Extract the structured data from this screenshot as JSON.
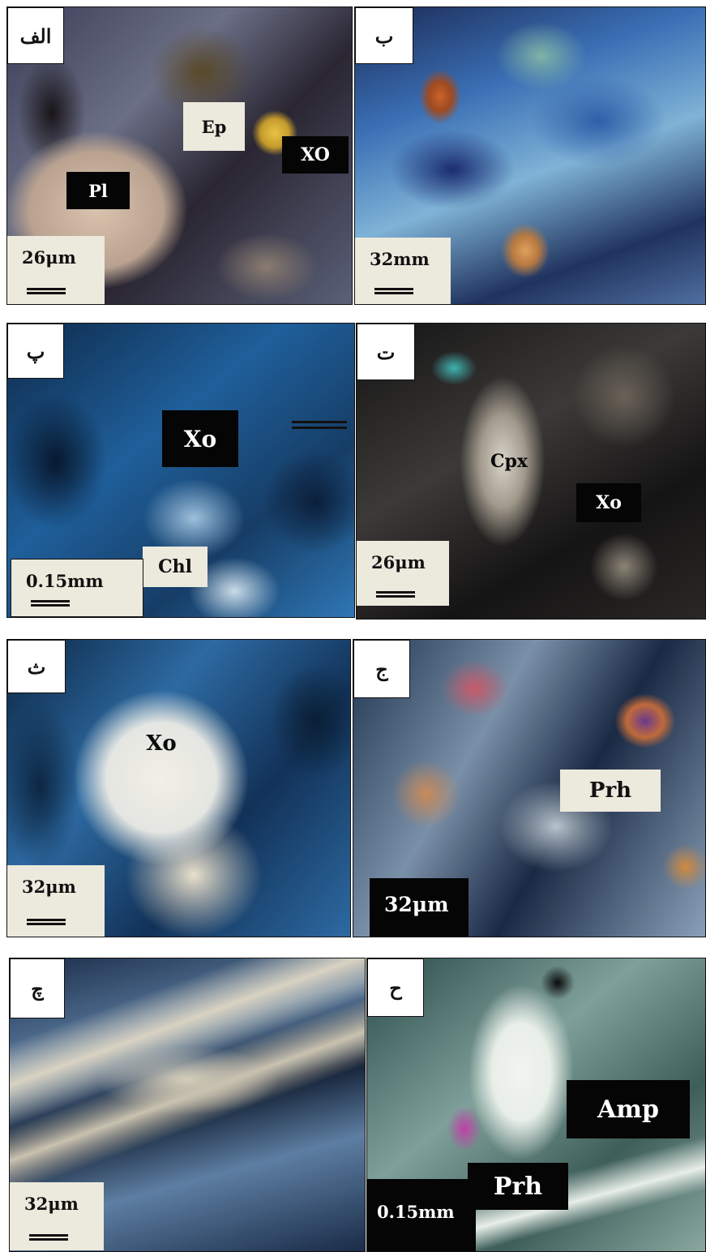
{
  "panels": [
    {
      "tag": "الف",
      "scale": "26μm",
      "labels": [
        "Ep",
        "XO",
        "Pl"
      ]
    },
    {
      "tag": "ب",
      "scale": "32mm",
      "labels": []
    },
    {
      "tag": "پ",
      "scale": "0.15mm",
      "labels": [
        "Xo",
        "Chl"
      ]
    },
    {
      "tag": "ت",
      "scale": "26μm",
      "labels": [
        "Cpx",
        "Xo"
      ]
    },
    {
      "tag": "ث",
      "scale": "32μm",
      "labels": [
        "Xo"
      ]
    },
    {
      "tag": "ج",
      "scale": "32μm",
      "labels": [
        "Prh"
      ]
    },
    {
      "tag": "چ",
      "scale": "32μm",
      "labels": []
    },
    {
      "tag": "ح",
      "scale": "0.15mm",
      "labels": [
        "Amp",
        "Prh"
      ]
    }
  ],
  "photo_colors": {
    "p1": [
      "#2a2632",
      "#c9b8a4",
      "#6b6f86"
    ],
    "p2": [
      "#1b2a55",
      "#3a6fb5",
      "#7fb3d6"
    ],
    "p3": [
      "#0e2a4a",
      "#1f5f9a",
      "#9dc0dc"
    ],
    "p4": [
      "#141414",
      "#3c3a38",
      "#c8c0b0"
    ],
    "p5": [
      "#0c2642",
      "#2d6aa2",
      "#f2efe4"
    ],
    "p6": [
      "#1f3550",
      "#7a90a8",
      "#c98a5a"
    ],
    "p7": [
      "#1a2c48",
      "#5d7ea2",
      "#d8d2c2"
    ],
    "p8": [
      "#2a4a4a",
      "#7fa09a",
      "#e8eee8"
    ]
  }
}
